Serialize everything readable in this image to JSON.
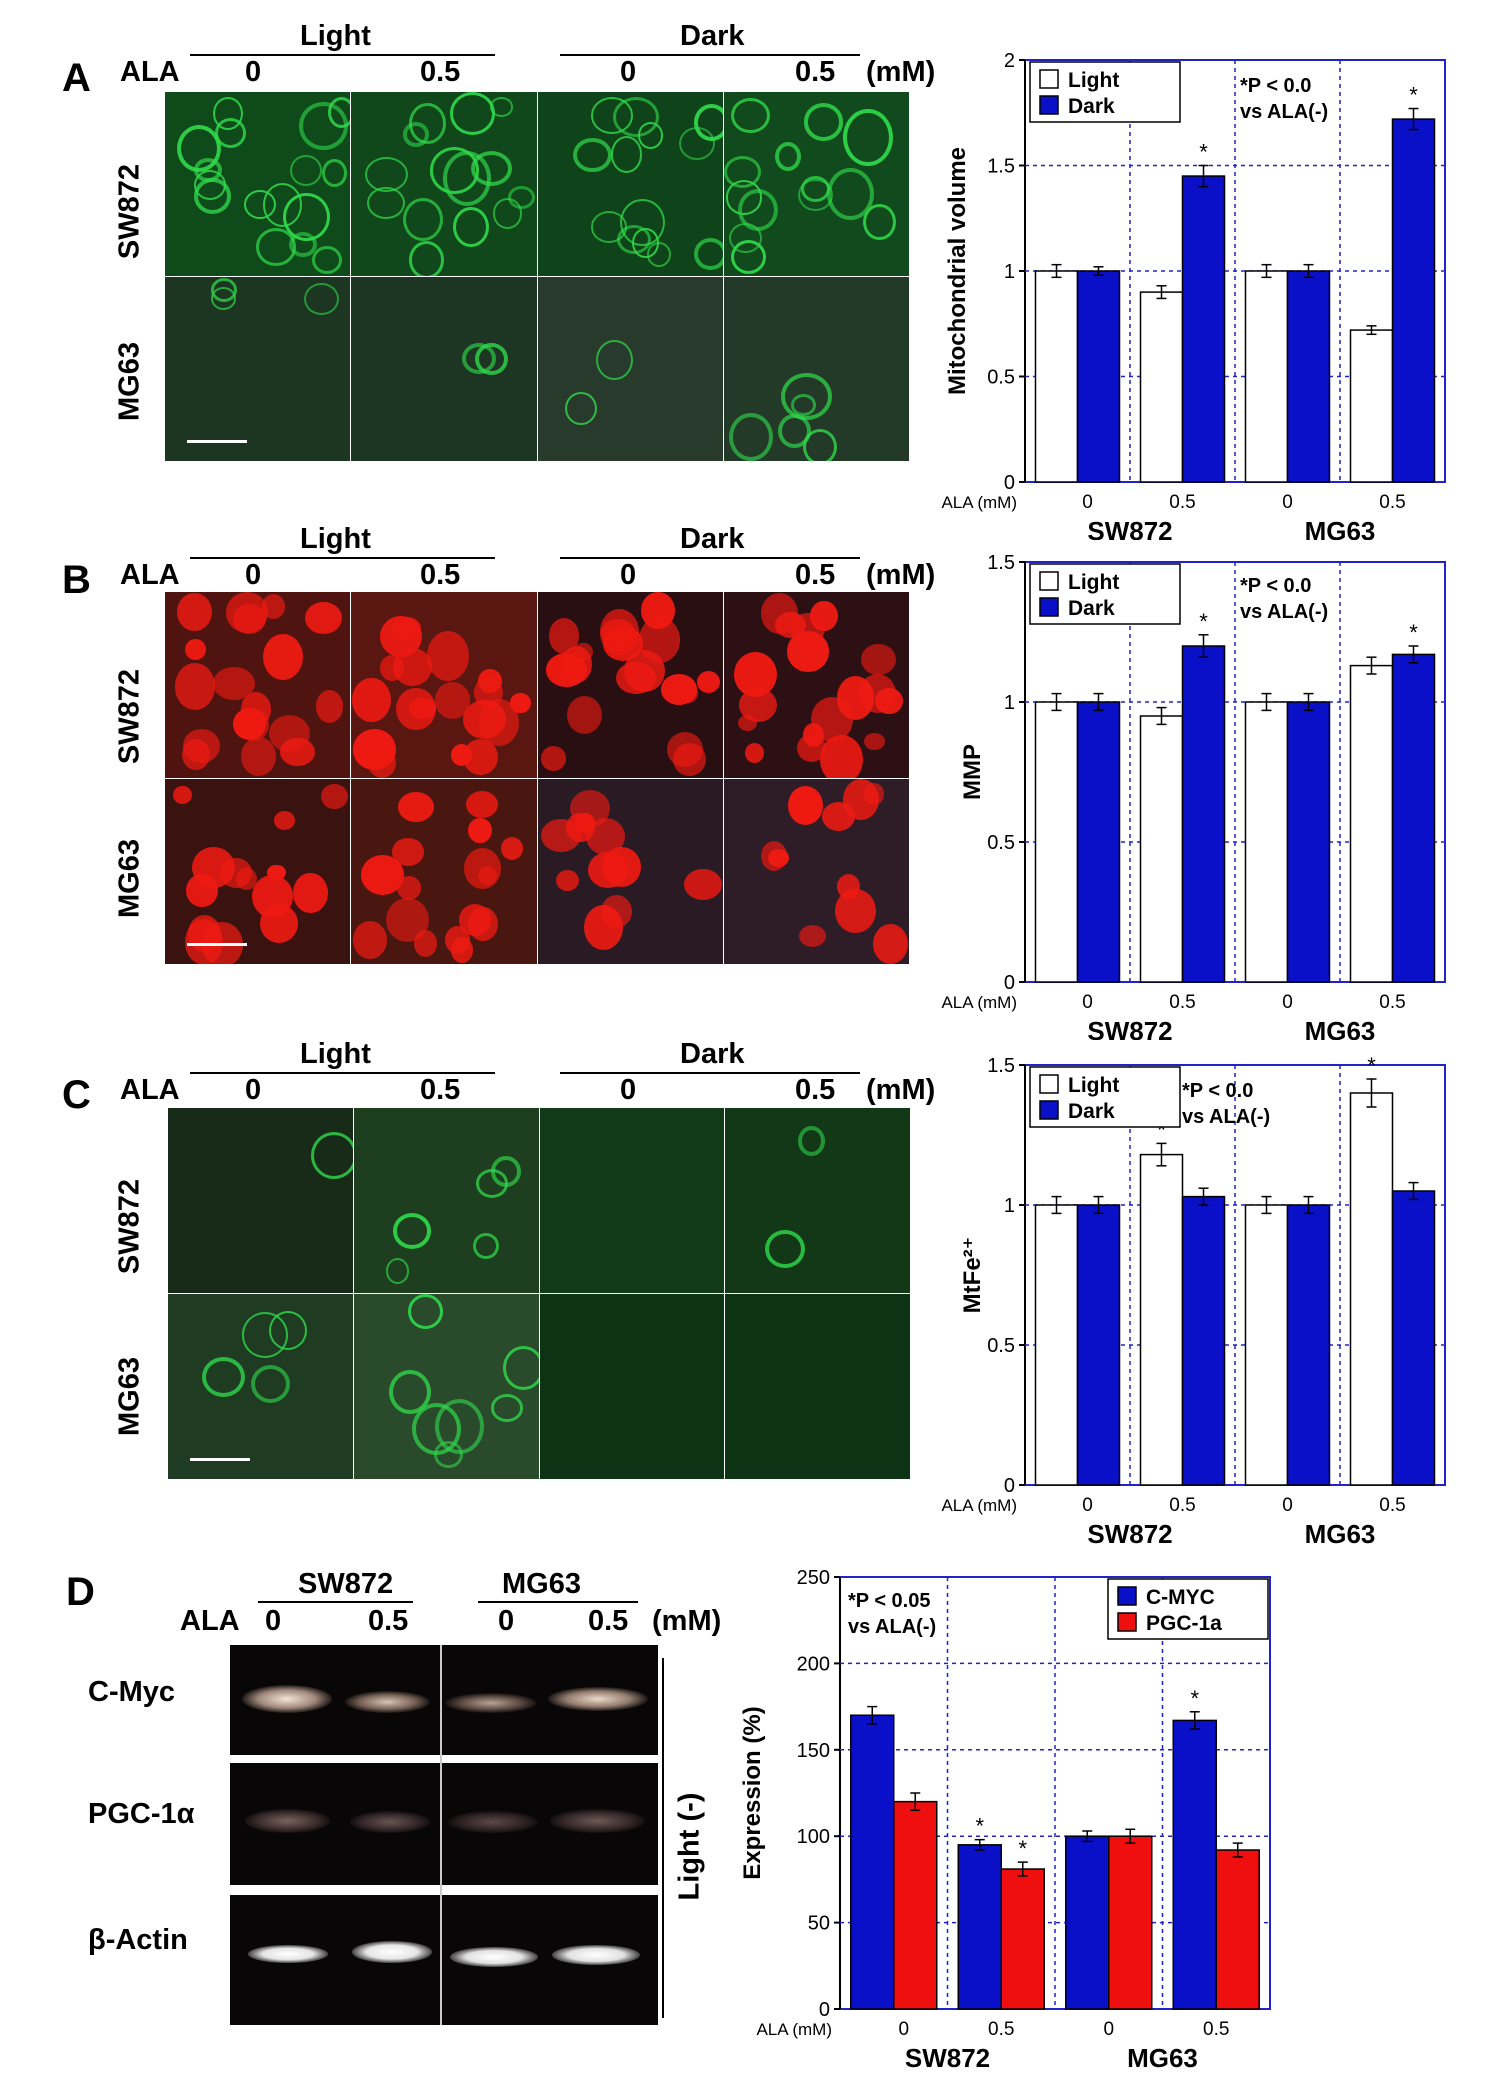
{
  "colors": {
    "light": "#ffffff",
    "dark": "#0a10c8",
    "cmyc": "#0a10c8",
    "pgc": "#f00f0f",
    "gfp": "#2fd84a",
    "tmrm": "#ee1a12"
  },
  "panel_a": {
    "letter": "A",
    "top_labels": {
      "light": "Light",
      "dark": "Dark",
      "ala": "ALA",
      "dose0a": "0",
      "dose05a": "0.5",
      "dose0b": "0",
      "dose05b": "0.5",
      "unit": "(mM)"
    },
    "rows": [
      "SW872",
      "MG63"
    ]
  },
  "panel_b": {
    "letter": "B",
    "top_labels": {
      "light": "Light",
      "dark": "Dark",
      "ala": "ALA",
      "dose0a": "0",
      "dose05a": "0.5",
      "dose0b": "0",
      "dose05b": "0.5",
      "unit": "(mM)"
    },
    "rows": [
      "SW872",
      "MG63"
    ]
  },
  "panel_c": {
    "letter": "C",
    "top_labels": {
      "light": "Light",
      "dark": "Dark",
      "ala": "ALA",
      "dose0a": "0",
      "dose05a": "0.5",
      "dose0b": "0",
      "dose05b": "0.5",
      "unit": "(mM)"
    },
    "rows": [
      "SW872",
      "MG63"
    ]
  },
  "panel_d": {
    "letter": "D",
    "top_labels": {
      "sw": "SW872",
      "mg": "MG63",
      "ala": "ALA",
      "d1": "0",
      "d2": "0.5",
      "d3": "0",
      "d4": "0.5",
      "unit": "(mM)"
    },
    "genes": [
      "C-Myc",
      "PGC-1α",
      "β-Actin"
    ],
    "side_label": "Light (-)"
  },
  "chart_data": [
    {
      "id": "A",
      "type": "bar",
      "categories": [
        "0",
        "0.5",
        "0",
        "0.5"
      ],
      "category_prefix": "ALA (mM)",
      "groups": [
        "SW872",
        "MG63"
      ],
      "series": [
        {
          "name": "Light",
          "values": [
            1.0,
            0.9,
            1.0,
            0.72
          ],
          "errors": [
            0.03,
            0.03,
            0.03,
            0.02
          ],
          "sig": [
            false,
            false,
            false,
            false
          ]
        },
        {
          "name": "Dark",
          "values": [
            1.0,
            1.45,
            1.0,
            1.72
          ],
          "errors": [
            0.02,
            0.05,
            0.03,
            0.05
          ],
          "sig": [
            false,
            true,
            false,
            true
          ]
        }
      ],
      "ylabel": "Mitochondrial volume",
      "ylim": [
        0,
        2
      ],
      "yticks": [
        "0",
        "0.5",
        "1",
        "1.5",
        "2"
      ],
      "annotation": [
        "*P < 0.0",
        "vs ALA(-)"
      ],
      "grid": true,
      "legend": "top-left"
    },
    {
      "id": "B",
      "type": "bar",
      "categories": [
        "0",
        "0.5",
        "0",
        "0.5"
      ],
      "category_prefix": "ALA (mM)",
      "groups": [
        "SW872",
        "MG63"
      ],
      "series": [
        {
          "name": "Light",
          "values": [
            1.0,
            0.95,
            1.0,
            1.13
          ],
          "errors": [
            0.03,
            0.03,
            0.03,
            0.03
          ],
          "sig": [
            false,
            false,
            false,
            false
          ]
        },
        {
          "name": "Dark",
          "values": [
            1.0,
            1.2,
            1.0,
            1.17
          ],
          "errors": [
            0.03,
            0.04,
            0.03,
            0.03
          ],
          "sig": [
            false,
            true,
            false,
            true
          ]
        }
      ],
      "ylabel": "MMP",
      "ylim": [
        0,
        1.5
      ],
      "yticks": [
        "0",
        "0.5",
        "1",
        "1.5"
      ],
      "annotation": [
        "*P < 0.0",
        "vs ALA(-)"
      ],
      "grid": true,
      "legend": "top-left"
    },
    {
      "id": "C",
      "type": "bar",
      "categories": [
        "0",
        "0.5",
        "0",
        "0.5"
      ],
      "category_prefix": "ALA (mM)",
      "groups": [
        "SW872",
        "MG63"
      ],
      "series": [
        {
          "name": "Light",
          "values": [
            1.0,
            1.18,
            1.0,
            1.4
          ],
          "errors": [
            0.03,
            0.04,
            0.03,
            0.05
          ],
          "sig": [
            false,
            true,
            false,
            true
          ]
        },
        {
          "name": "Dark",
          "values": [
            1.0,
            1.03,
            1.0,
            1.05
          ],
          "errors": [
            0.03,
            0.03,
            0.03,
            0.03
          ],
          "sig": [
            false,
            false,
            false,
            false
          ]
        }
      ],
      "ylabel": "MtFe²⁺",
      "ylim": [
        0,
        1.5
      ],
      "yticks": [
        "0",
        "0.5",
        "1",
        "1.5"
      ],
      "annotation": [
        "*P < 0.0",
        "vs ALA(-)"
      ],
      "grid": true,
      "legend": "top-left"
    },
    {
      "id": "D",
      "type": "bar",
      "categories": [
        "0",
        "0.5",
        "0",
        "0.5"
      ],
      "category_prefix": "ALA (mM)",
      "groups": [
        "SW872",
        "MG63"
      ],
      "series": [
        {
          "name": "C-MYC",
          "values": [
            170,
            95,
            100,
            167
          ],
          "errors": [
            5,
            3,
            3,
            5
          ],
          "sig": [
            false,
            true,
            false,
            true
          ]
        },
        {
          "name": "PGC-1a",
          "values": [
            120,
            81,
            100,
            92
          ],
          "errors": [
            5,
            4,
            4,
            4
          ],
          "sig": [
            false,
            true,
            false,
            false
          ]
        }
      ],
      "ylabel": "Expression (%)",
      "ylim": [
        0,
        250
      ],
      "yticks": [
        "0",
        "50",
        "100",
        "150",
        "200",
        "250"
      ],
      "annotation": [
        "*P < 0.05",
        "vs ALA(-)"
      ],
      "grid": true,
      "legend": "top-right"
    }
  ]
}
